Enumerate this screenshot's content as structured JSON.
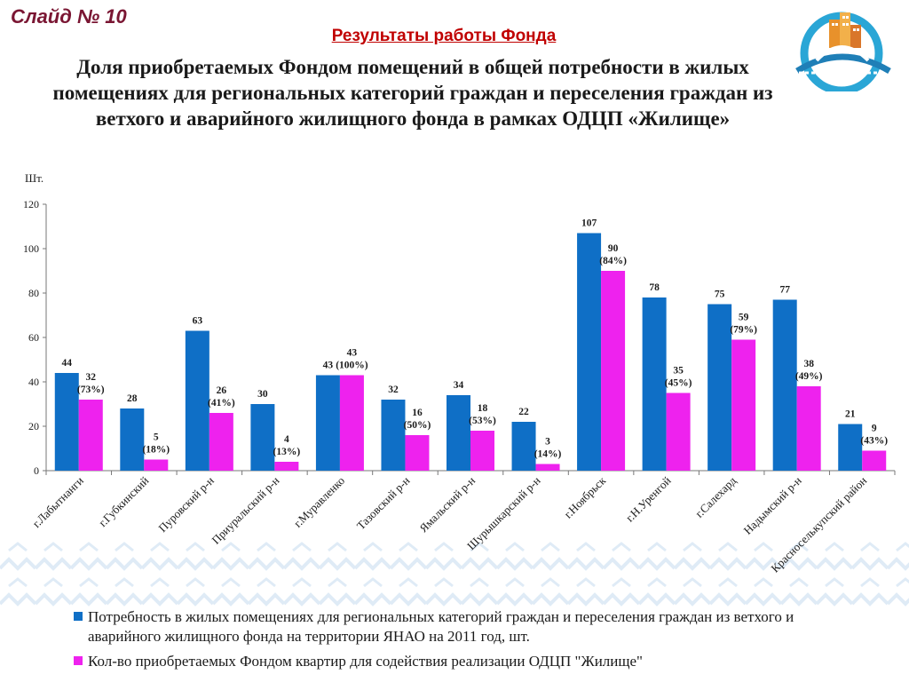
{
  "slide": {
    "number_label": "Слайд № 10",
    "subtitle": "Результаты работы Фонда",
    "title": "Доля приобретаемых Фондом помещений в общей потребности в жилых помещениях для региональных категорий граждан и переселения граждан из ветхого и аварийного жилищного фонда в рамках  ОДЦП «Жилище»"
  },
  "colors": {
    "series_need": "#0f6fc6",
    "series_acquired": "#ee22ee",
    "subtitle": "#c00000",
    "slide_number": "#7a1633"
  },
  "icons": [
    "logo-house-bridge-icon",
    "ornament-pattern"
  ],
  "chart_data": {
    "type": "bar",
    "ylabel": "Шт.",
    "ylim": [
      0,
      120
    ],
    "yticks": [
      0,
      20,
      40,
      60,
      80,
      100,
      120
    ],
    "grid": false,
    "legend_position": "bottom",
    "categories": [
      "г.Лабытнанги",
      "г.Губкинский",
      "Пуровский р-н",
      "Приуральский р-н",
      "г.Муравленко",
      "Тазовский р-н",
      "Ямальский р-н",
      "Шурышкарский р-н",
      "г.Ноябрьск",
      "г.Н.Уренгой",
      "г.Салехард",
      "Надымский р-н",
      "Красноселькупский район"
    ],
    "series": [
      {
        "name": "Потребность в жилых помещениях для региональных категорий граждан и переселения граждан из ветхого и аварийного жилищного фонда на территории ЯНАО на 2011 год, шт.",
        "values": [
          44,
          28,
          63,
          30,
          43,
          32,
          34,
          22,
          107,
          78,
          75,
          77,
          21
        ],
        "labels": [
          "44",
          "28",
          "63",
          "30",
          "43",
          "32",
          "34",
          "22",
          "107",
          "78",
          "75",
          "77",
          "21"
        ]
      },
      {
        "name": "Кол-во приобретаемых Фондом квартир для содействия реализации ОДЦП \"Жилище\"",
        "values": [
          32,
          5,
          26,
          4,
          43,
          16,
          18,
          3,
          90,
          35,
          59,
          38,
          9
        ],
        "labels": [
          "32\n(73%)",
          "5\n(18%)",
          "26\n(41%)",
          "4\n(13%)",
          "43\n(100%)",
          "16\n(50%)",
          "18\n(53%)",
          "3\n(14%)",
          "90\n(84%)",
          "35\n(45%)",
          "59\n(79%)",
          "38\n(49%)",
          "9\n(43%)"
        ]
      }
    ]
  }
}
